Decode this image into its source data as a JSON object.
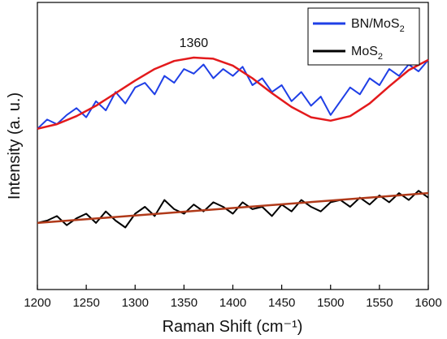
{
  "chart_data": {
    "type": "line",
    "xlabel": "Raman Shift (cm⁻¹)",
    "ylabel": "Intensity (a. u.)",
    "xlim": [
      1200,
      1600
    ],
    "y_tick_labels": "none",
    "grid": false,
    "legend_position": "top-right",
    "annotations": [
      {
        "text": "1360",
        "x": 1360,
        "y": 10.55
      }
    ],
    "x_ticks": [
      1200,
      1250,
      1300,
      1350,
      1400,
      1450,
      1500,
      1550,
      1600
    ],
    "series": [
      {
        "name": "BN/MoS₂",
        "legend_text": "BN/MoS",
        "legend_sub": "2",
        "color": "#1f3fe6",
        "x": [
          1200,
          1210,
          1220,
          1230,
          1240,
          1250,
          1260,
          1270,
          1280,
          1290,
          1300,
          1310,
          1320,
          1330,
          1340,
          1350,
          1360,
          1370,
          1380,
          1390,
          1400,
          1410,
          1420,
          1430,
          1440,
          1450,
          1460,
          1470,
          1480,
          1490,
          1500,
          1510,
          1520,
          1530,
          1540,
          1550,
          1560,
          1570,
          1580,
          1590,
          1600
        ],
        "y": [
          7.0,
          7.4,
          7.2,
          7.6,
          7.9,
          7.5,
          8.2,
          7.8,
          8.6,
          8.1,
          8.8,
          9.0,
          8.5,
          9.3,
          9.0,
          9.6,
          9.4,
          9.8,
          9.2,
          9.6,
          9.3,
          9.7,
          8.9,
          9.2,
          8.6,
          8.9,
          8.2,
          8.6,
          8.0,
          8.4,
          7.6,
          8.2,
          8.8,
          8.5,
          9.2,
          8.9,
          9.6,
          9.3,
          9.8,
          9.5,
          10.0
        ]
      },
      {
        "name": "BN/MoS₂ fit",
        "legend": false,
        "color": "#e31a1c",
        "x": [
          1200,
          1220,
          1240,
          1260,
          1280,
          1300,
          1320,
          1340,
          1360,
          1380,
          1400,
          1420,
          1440,
          1460,
          1480,
          1500,
          1520,
          1540,
          1560,
          1580,
          1600
        ],
        "y": [
          7.0,
          7.2,
          7.55,
          8.0,
          8.55,
          9.1,
          9.6,
          9.95,
          10.1,
          10.05,
          9.75,
          9.2,
          8.55,
          7.95,
          7.5,
          7.35,
          7.55,
          8.1,
          8.85,
          9.55,
          10.0
        ]
      },
      {
        "name": "MoS₂",
        "legend_text": "MoS",
        "legend_sub": "2",
        "color": "#000000",
        "x": [
          1200,
          1210,
          1220,
          1230,
          1240,
          1250,
          1260,
          1270,
          1280,
          1290,
          1300,
          1310,
          1320,
          1330,
          1340,
          1350,
          1360,
          1370,
          1380,
          1390,
          1400,
          1410,
          1420,
          1430,
          1440,
          1450,
          1460,
          1470,
          1480,
          1490,
          1500,
          1510,
          1520,
          1530,
          1540,
          1550,
          1560,
          1570,
          1580,
          1590,
          1600
        ],
        "y": [
          2.9,
          3.0,
          3.2,
          2.8,
          3.1,
          3.3,
          2.9,
          3.4,
          3.0,
          2.7,
          3.3,
          3.6,
          3.2,
          3.9,
          3.5,
          3.3,
          3.7,
          3.4,
          3.8,
          3.6,
          3.3,
          3.8,
          3.5,
          3.6,
          3.2,
          3.7,
          3.4,
          3.9,
          3.6,
          3.4,
          3.8,
          3.9,
          3.6,
          4.0,
          3.7,
          4.1,
          3.8,
          4.2,
          3.9,
          4.3,
          4.0
        ]
      },
      {
        "name": "MoS₂ fit",
        "legend": false,
        "color": "#b03a1a",
        "x": [
          1200,
          1600
        ],
        "y": [
          2.9,
          4.2
        ]
      }
    ]
  }
}
